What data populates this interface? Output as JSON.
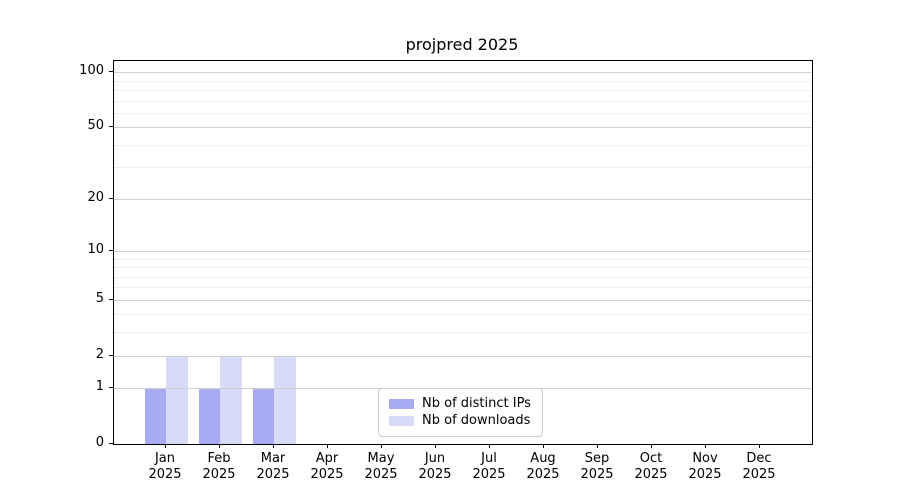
{
  "chart_data": {
    "type": "bar",
    "title": "projpred 2025",
    "x_categories": [
      {
        "month": "Jan",
        "year": "2025"
      },
      {
        "month": "Feb",
        "year": "2025"
      },
      {
        "month": "Mar",
        "year": "2025"
      },
      {
        "month": "Apr",
        "year": "2025"
      },
      {
        "month": "May",
        "year": "2025"
      },
      {
        "month": "Jun",
        "year": "2025"
      },
      {
        "month": "Jul",
        "year": "2025"
      },
      {
        "month": "Aug",
        "year": "2025"
      },
      {
        "month": "Sep",
        "year": "2025"
      },
      {
        "month": "Oct",
        "year": "2025"
      },
      {
        "month": "Nov",
        "year": "2025"
      },
      {
        "month": "Dec",
        "year": "2025"
      }
    ],
    "series": [
      {
        "name": "Nb of distinct IPs",
        "color": "#a7abf2",
        "values": [
          1,
          1,
          1,
          0,
          0,
          0,
          0,
          0,
          0,
          0,
          0,
          0
        ]
      },
      {
        "name": "Nb of downloads",
        "color": "#d8dbf8",
        "values": [
          2,
          2,
          2,
          0,
          0,
          0,
          0,
          0,
          0,
          0,
          0,
          0
        ]
      }
    ],
    "y_scale": "log1p",
    "y_major_ticks": [
      0,
      1,
      2,
      5,
      10,
      20,
      50,
      100
    ],
    "y_minor_ticks": [
      3,
      4,
      6,
      7,
      8,
      9,
      30,
      40,
      60,
      70,
      80,
      90
    ],
    "ylim": [
      0,
      115
    ],
    "grid": "horizontal-major-and-minor",
    "legend_position": "lower-center-inside"
  }
}
